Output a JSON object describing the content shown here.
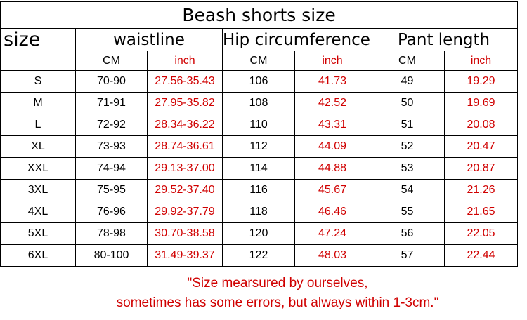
{
  "title": "Beash shorts size",
  "header": {
    "size": "size",
    "groups": [
      "waistline",
      "Hip circumference",
      "Pant length"
    ],
    "units": [
      "CM",
      "inch",
      "CM",
      "inch",
      "CM",
      "inch"
    ]
  },
  "rows": [
    [
      "S",
      "70-90",
      "27.56-35.43",
      "106",
      "41.73",
      "49",
      "19.29"
    ],
    [
      "M",
      "71-91",
      "27.95-35.82",
      "108",
      "42.52",
      "50",
      "19.69"
    ],
    [
      "L",
      "72-92",
      "28.34-36.22",
      "110",
      "43.31",
      "51",
      "20.08"
    ],
    [
      "XL",
      "73-93",
      "28.74-36.61",
      "112",
      "44.09",
      "52",
      "20.47"
    ],
    [
      "XXL",
      "74-94",
      "29.13-37.00",
      "114",
      "44.88",
      "53",
      "20.87"
    ],
    [
      "3XL",
      "75-95",
      "29.52-37.40",
      "116",
      "45.67",
      "54",
      "21.26"
    ],
    [
      "4XL",
      "76-96",
      "29.92-37.79",
      "118",
      "46.46",
      "55",
      "21.65"
    ],
    [
      "5XL",
      "78-98",
      "30.70-38.58",
      "120",
      "47.24",
      "56",
      "22.05"
    ],
    [
      "6XL",
      "80-100",
      "31.49-39.37",
      "122",
      "48.03",
      "57",
      "22.44"
    ]
  ],
  "note": [
    "\"Size mearsured by ourselves,",
    "sometimes has some errors, but always within 1-3cm.\""
  ]
}
